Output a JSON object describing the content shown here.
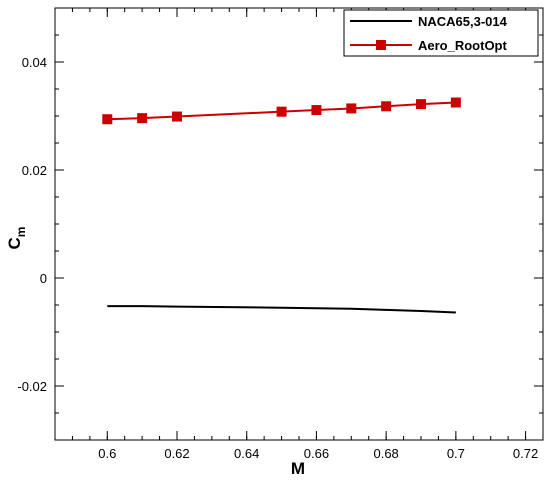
{
  "chart_data": {
    "type": "line",
    "xlabel": "M",
    "ylabel": {
      "base": "C",
      "sub": "m"
    },
    "xlim": [
      0.585,
      0.725
    ],
    "ylim": [
      -0.03,
      0.05
    ],
    "xticks": [
      0.6,
      0.62,
      0.64,
      0.66,
      0.68,
      0.7,
      0.72
    ],
    "xtick_labels": [
      "0.6",
      "0.62",
      "0.64",
      "0.66",
      "0.68",
      "0.7",
      "0.72"
    ],
    "yticks": [
      -0.02,
      0,
      0.02,
      0.04
    ],
    "ytick_labels": [
      "-0.02",
      "0",
      "0.02",
      "0.04"
    ],
    "grid": false,
    "legend_position": "top-right",
    "series": [
      {
        "name": "NACA65,3-014",
        "color": "#000000",
        "marker": "none",
        "x": [
          0.6,
          0.61,
          0.62,
          0.65,
          0.66,
          0.67,
          0.68,
          0.69,
          0.7
        ],
        "y": [
          -0.0052,
          -0.0052,
          -0.0053,
          -0.0055,
          -0.0056,
          -0.0057,
          -0.0059,
          -0.0061,
          -0.0064
        ]
      },
      {
        "name": "Aero_RootOpt",
        "color": "#cc0000",
        "marker": "square",
        "x": [
          0.6,
          0.61,
          0.62,
          0.65,
          0.66,
          0.67,
          0.68,
          0.69,
          0.7
        ],
        "y": [
          0.0294,
          0.0296,
          0.0299,
          0.0308,
          0.0311,
          0.0314,
          0.0318,
          0.0322,
          0.0325
        ]
      }
    ]
  }
}
